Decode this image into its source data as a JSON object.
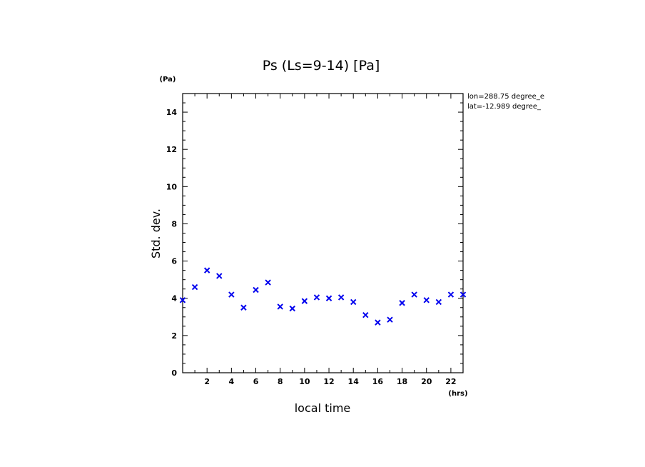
{
  "chart_data": {
    "type": "scatter",
    "title": "Ps (Ls=9-14) [Pa]",
    "xlabel": "local time",
    "ylabel": "Std. dev.",
    "x_unit": "(hrs)",
    "y_unit": "(Pa)",
    "xlim": [
      0,
      23
    ],
    "ylim": [
      0,
      15
    ],
    "x_major_ticks": [
      2,
      4,
      6,
      8,
      10,
      12,
      14,
      16,
      18,
      20,
      22
    ],
    "x_tick_labels": [
      "2",
      "4",
      "6",
      "8",
      "10",
      "12",
      "14",
      "16",
      "18",
      "20",
      "22"
    ],
    "y_major_ticks": [
      0,
      2,
      4,
      6,
      8,
      10,
      12,
      14
    ],
    "y_tick_labels": [
      "0",
      "2",
      "4",
      "6",
      "8",
      "10",
      "12",
      "14"
    ],
    "grid": false,
    "marker": "x",
    "marker_color": "#0000ee",
    "annotations": [
      "lon=288.75 degree_e",
      "lat=-12.989 degree_"
    ],
    "series": [
      {
        "x": [
          0,
          1,
          2,
          3,
          4,
          5,
          6,
          7,
          8,
          9,
          10,
          11,
          12,
          13,
          14,
          15,
          16,
          17,
          18,
          19,
          20,
          21,
          22,
          23
        ],
        "y": [
          3.9,
          4.6,
          5.5,
          5.2,
          4.2,
          3.5,
          4.45,
          4.85,
          3.55,
          3.45,
          3.85,
          4.05,
          4.0,
          4.05,
          3.8,
          3.1,
          2.7,
          2.85,
          3.75,
          4.2,
          3.9,
          3.8,
          4.2,
          4.2
        ]
      }
    ]
  }
}
